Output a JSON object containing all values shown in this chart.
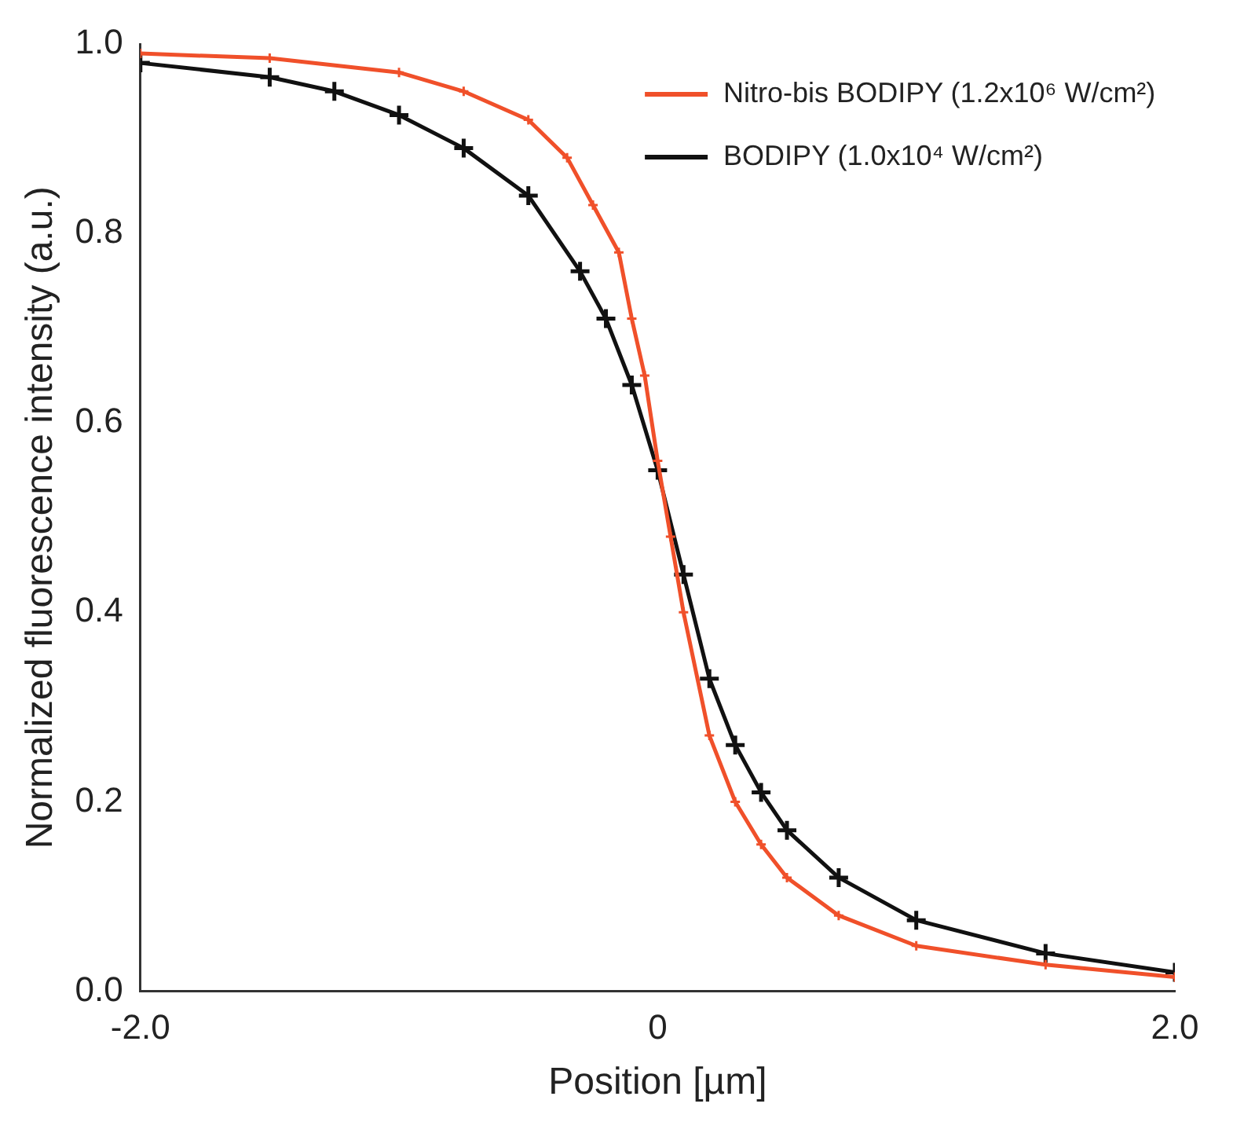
{
  "chart_data": {
    "type": "line",
    "xlabel": "Position [µm]",
    "ylabel": "Normalized fluorescence intensity (a.u.)",
    "xlim": [
      -2,
      2
    ],
    "ylim": [
      0,
      1
    ],
    "xticks": [
      {
        "value": -2,
        "label": "-2.0"
      },
      0,
      {
        "value": 2,
        "label": "2.0"
      }
    ],
    "yticks": [
      {
        "value": 0,
        "label": "0.0"
      },
      0.2,
      0.4,
      0.6,
      0.8,
      {
        "value": 1,
        "label": "1.0"
      }
    ],
    "grid": false,
    "legend": "top right",
    "marker": "cross",
    "line_style": "solid",
    "series": [
      {
        "name": "Nitro-bis BODIPY (1.2x10⁶ W/cm²)",
        "color": "#f0502a",
        "x": [
          -2,
          -1.5,
          -1,
          -0.75,
          -0.5,
          -0.35,
          -0.25,
          -0.15,
          -0.1,
          -0.05,
          0,
          0.05,
          0.1,
          0.2,
          0.3,
          0.4,
          0.5,
          0.7,
          1,
          1.5,
          2
        ],
        "values": [
          0.99,
          0.985,
          0.97,
          0.95,
          0.92,
          0.88,
          0.83,
          0.78,
          0.71,
          0.65,
          0.56,
          0.48,
          0.4,
          0.27,
          0.2,
          0.155,
          0.12,
          0.08,
          0.048,
          0.028,
          0.015
        ]
      },
      {
        "name": "BODIPY (1.0x10⁴ W/cm²)",
        "color": "#111111",
        "x": [
          -2,
          -1.5,
          -1.25,
          -1,
          -0.75,
          -0.5,
          -0.3,
          -0.2,
          -0.1,
          0,
          0.1,
          0.2,
          0.3,
          0.4,
          0.5,
          0.7,
          1,
          1.5,
          2
        ],
        "values": [
          0.98,
          0.965,
          0.95,
          0.925,
          0.89,
          0.84,
          0.76,
          0.71,
          0.64,
          0.55,
          0.44,
          0.33,
          0.26,
          0.21,
          0.17,
          0.12,
          0.075,
          0.04,
          0.02
        ]
      }
    ]
  }
}
